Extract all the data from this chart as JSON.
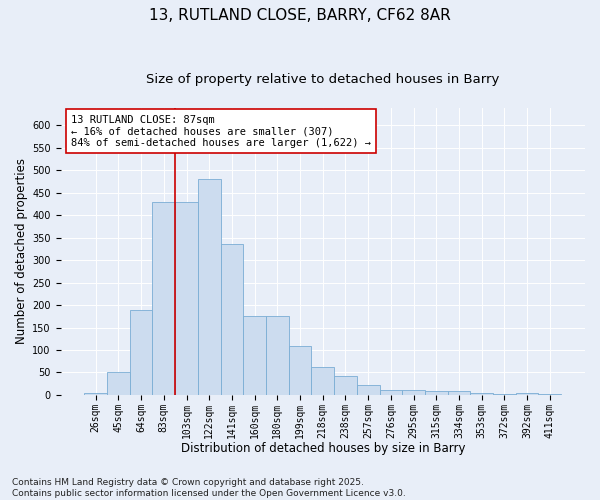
{
  "title": "13, RUTLAND CLOSE, BARRY, CF62 8AR",
  "subtitle": "Size of property relative to detached houses in Barry",
  "xlabel": "Distribution of detached houses by size in Barry",
  "ylabel": "Number of detached properties",
  "categories": [
    "26sqm",
    "45sqm",
    "64sqm",
    "83sqm",
    "103sqm",
    "122sqm",
    "141sqm",
    "160sqm",
    "180sqm",
    "199sqm",
    "218sqm",
    "238sqm",
    "257sqm",
    "276sqm",
    "295sqm",
    "315sqm",
    "334sqm",
    "353sqm",
    "372sqm",
    "392sqm",
    "411sqm"
  ],
  "values": [
    5,
    52,
    190,
    430,
    430,
    480,
    335,
    175,
    175,
    108,
    62,
    42,
    22,
    12,
    10,
    8,
    8,
    4,
    2,
    5,
    2
  ],
  "bar_color": "#ccdcef",
  "bar_edge_color": "#7aadd4",
  "vline_color": "#cc0000",
  "vline_pos": 3.5,
  "annotation_text": "13 RUTLAND CLOSE: 87sqm\n← 16% of detached houses are smaller (307)\n84% of semi-detached houses are larger (1,622) →",
  "annotation_box_color": "#ffffff",
  "annotation_box_edge": "#cc0000",
  "ylim": [
    0,
    640
  ],
  "yticks": [
    0,
    50,
    100,
    150,
    200,
    250,
    300,
    350,
    400,
    450,
    500,
    550,
    600
  ],
  "footer": "Contains HM Land Registry data © Crown copyright and database right 2025.\nContains public sector information licensed under the Open Government Licence v3.0.",
  "background_color": "#e8eef8",
  "plot_bg_color": "#e8eef8",
  "title_fontsize": 11,
  "subtitle_fontsize": 9.5,
  "axis_label_fontsize": 8.5,
  "tick_fontsize": 7,
  "annotation_fontsize": 7.5,
  "footer_fontsize": 6.5
}
